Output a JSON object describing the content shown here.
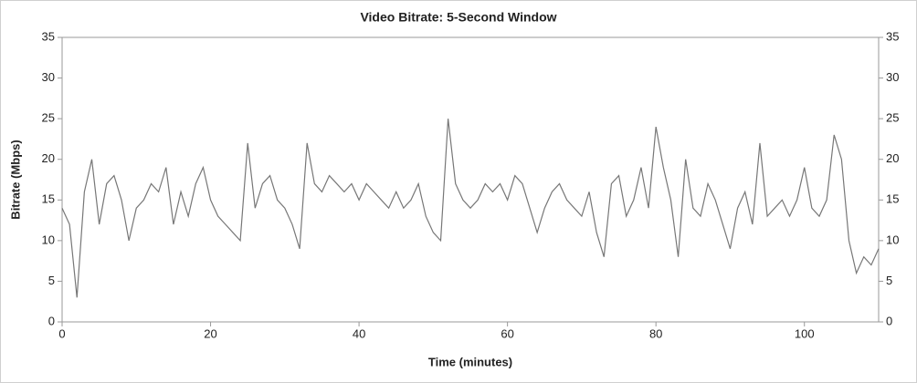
{
  "chart_data": {
    "type": "line",
    "title": "Video Bitrate: 5-Second Window",
    "x_label": "Time (minutes)",
    "y_label": "Bitrate (Mbps)",
    "x": [
      0,
      1,
      2,
      3,
      4,
      5,
      6,
      7,
      8,
      9,
      10,
      11,
      12,
      13,
      14,
      15,
      16,
      17,
      18,
      19,
      20,
      21,
      22,
      23,
      24,
      25,
      26,
      27,
      28,
      29,
      30,
      31,
      32,
      33,
      34,
      35,
      36,
      37,
      38,
      39,
      40,
      41,
      42,
      43,
      44,
      45,
      46,
      47,
      48,
      49,
      50,
      51,
      52,
      53,
      54,
      55,
      56,
      57,
      58,
      59,
      60,
      61,
      62,
      63,
      64,
      65,
      66,
      67,
      68,
      69,
      70,
      71,
      72,
      73,
      74,
      75,
      76,
      77,
      78,
      79,
      80,
      81,
      82,
      83,
      84,
      85,
      86,
      87,
      88,
      89,
      90,
      91,
      92,
      93,
      94,
      95,
      96,
      97,
      98,
      99,
      100,
      101,
      102,
      103,
      104,
      105,
      106,
      107,
      108,
      109,
      110
    ],
    "series": [
      {
        "color": "#777777",
        "values": [
          14,
          12,
          3,
          16,
          20,
          12,
          17,
          18,
          15,
          10,
          14,
          15,
          17,
          16,
          19,
          12,
          16,
          13,
          17,
          19,
          15,
          13,
          12,
          11,
          10,
          22,
          14,
          17,
          18,
          15,
          14,
          12,
          9,
          22,
          17,
          16,
          18,
          17,
          16,
          17,
          15,
          17,
          16,
          15,
          14,
          16,
          14,
          15,
          17,
          13,
          11,
          10,
          25,
          17,
          15,
          14,
          15,
          17,
          16,
          17,
          15,
          18,
          17,
          14,
          11,
          14,
          16,
          17,
          15,
          14,
          13,
          16,
          11,
          8,
          17,
          18,
          13,
          15,
          19,
          14,
          24,
          19,
          15,
          8,
          20,
          14,
          13,
          17,
          15,
          12,
          9,
          14,
          16,
          12,
          22,
          13,
          14,
          15,
          13,
          15,
          19,
          14,
          13,
          15,
          23,
          20,
          10,
          6,
          8,
          7,
          9
        ]
      }
    ],
    "xlim": [
      0,
      110
    ],
    "xticks": [
      0,
      20,
      40,
      60,
      80,
      100
    ],
    "ylim": [
      0,
      35
    ],
    "yticks": [
      0,
      5,
      10,
      15,
      20,
      25,
      30,
      35
    ],
    "y2lim": [
      0,
      35
    ],
    "y2ticks": [
      0,
      5,
      10,
      15,
      20,
      25,
      30,
      35
    ]
  }
}
